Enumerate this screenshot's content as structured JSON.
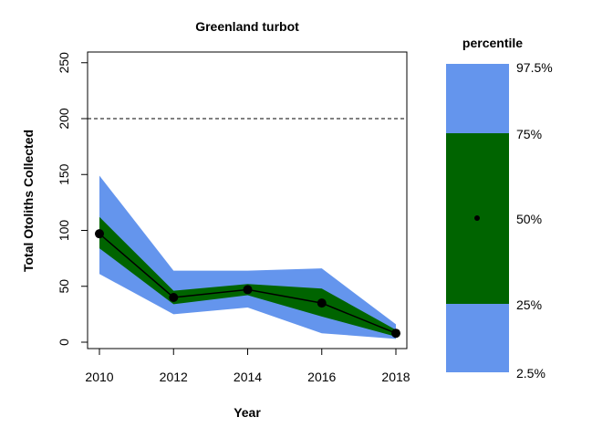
{
  "chart_data": {
    "type": "area",
    "title": "Greenland turbot",
    "xlabel": "Year",
    "ylabel": "Total Otoliths Collected",
    "xlim": [
      2010,
      2018
    ],
    "ylim": [
      -5,
      258
    ],
    "x_ticks": [
      "2010",
      "2012",
      "2014",
      "2016",
      "2018"
    ],
    "y_ticks": [
      "0",
      "50",
      "100",
      "150",
      "200",
      "250"
    ],
    "reference_line": {
      "y": 200,
      "style": "dashed"
    },
    "x": [
      2010,
      2012,
      2014,
      2016,
      2018
    ],
    "median": [
      97,
      40,
      47,
      35,
      8
    ],
    "band_outer": {
      "low": [
        61,
        25,
        31,
        8,
        3
      ],
      "high": [
        149,
        64,
        64,
        66,
        16
      ]
    },
    "band_inner": {
      "low": [
        84,
        34,
        42,
        23,
        5
      ],
      "high": [
        112,
        46,
        52,
        48,
        11
      ]
    },
    "colors": {
      "outer_band": "#6495ED",
      "inner_band": "#006400",
      "median": "#000000"
    }
  },
  "legend": {
    "title": "percentile",
    "labels": [
      "97.5%",
      "75%",
      "50%",
      "25%",
      "2.5%"
    ]
  }
}
